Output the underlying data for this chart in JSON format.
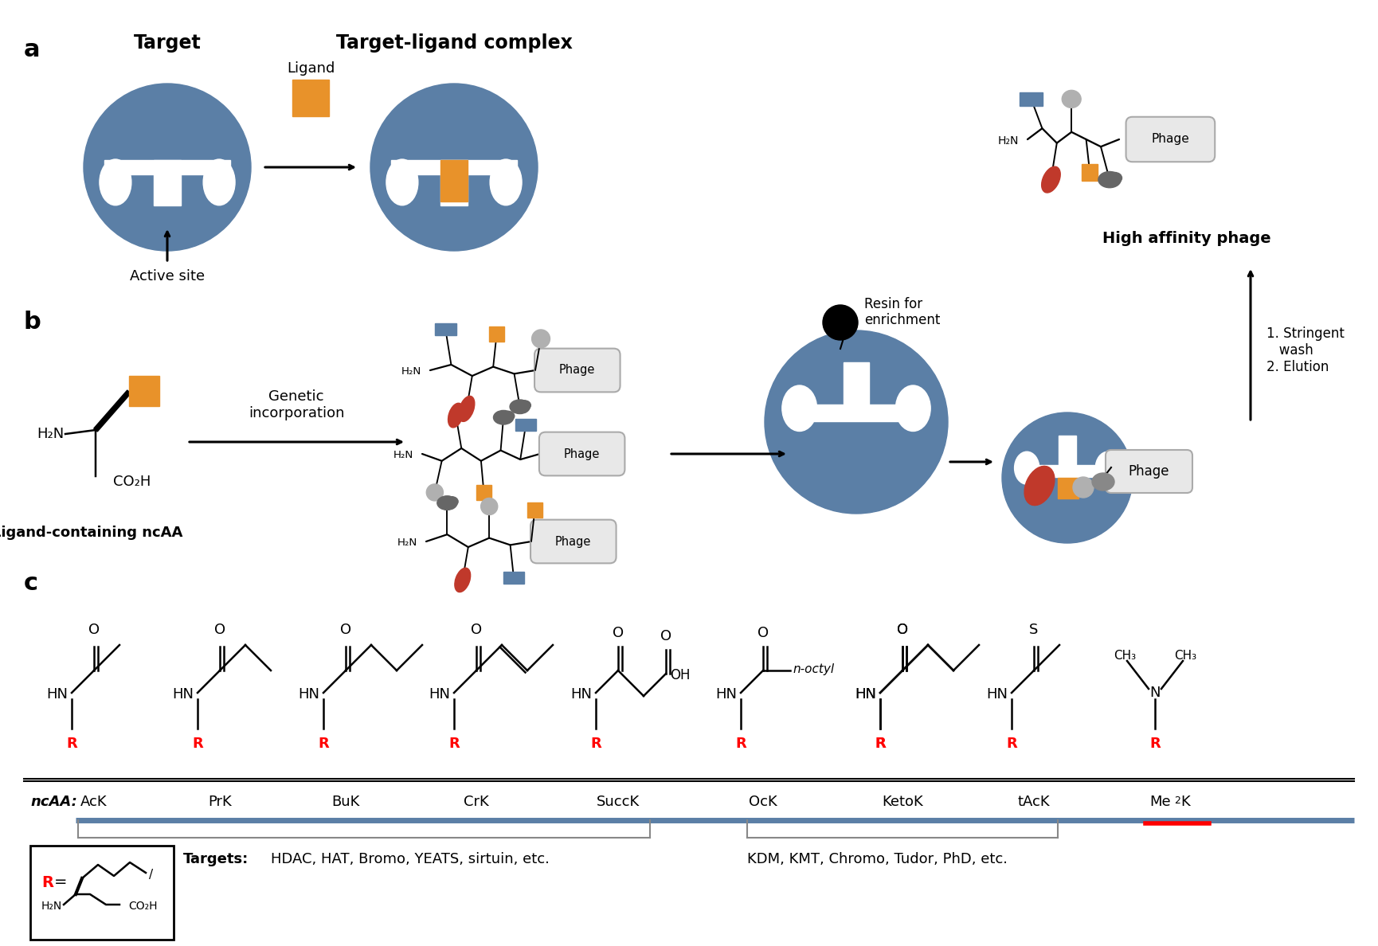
{
  "bg_color": "#ffffff",
  "panel_a_label": "a",
  "panel_b_label": "b",
  "panel_c_label": "c",
  "target_label": "Target",
  "complex_label": "Target-ligand complex",
  "ligand_label": "Ligand",
  "active_site_label": "Active site",
  "genetic_incorp_label": "Genetic\nincorporation",
  "ligand_ncaa_label": "Ligand-containing ncAA",
  "phage_label": "Phage",
  "resin_label": "Resin for\nenrichment",
  "high_affinity_label": "High affinity phage",
  "wash_elution_label": "1. Stringent\n   wash\n2. Elution",
  "ncaa_label": "ncAA:",
  "ncaa_names": [
    "AcK",
    "PrK",
    "BuK",
    "CrK",
    "SuccK",
    "OcK",
    "KetoK",
    "tAcK"
  ],
  "targets_label": "Targets:",
  "targets1": "HDAC, HAT, Bromo, YEATS, sirtuin, etc.",
  "targets2": "KDM, KMT, Chromo, Tudor, PhD, etc.",
  "n_octyl": "n-octyl",
  "blue_color": "#5b7fa6",
  "orange_color": "#e8922a",
  "red_color": "#c0392b",
  "dark_gray": "#666666",
  "light_gray": "#b0b0b0",
  "med_gray": "#888888",
  "slate_blue": "#5b7fa6"
}
